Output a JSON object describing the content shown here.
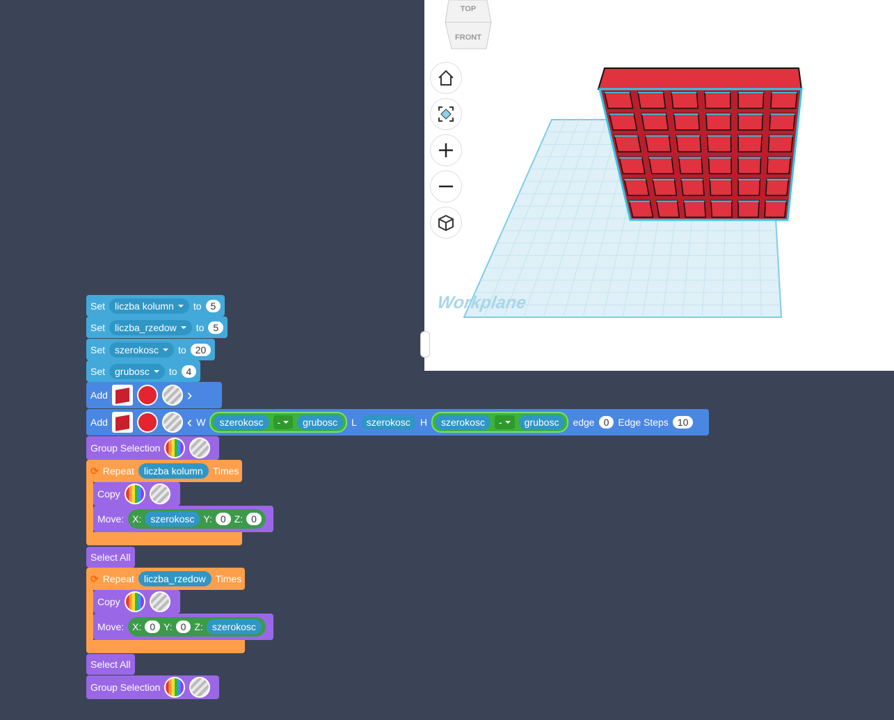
{
  "view_cube": {
    "top": "TOP",
    "front": "FRONT"
  },
  "workplane_label": "Workplane",
  "blocks": [
    {
      "label": "Set",
      "variable": "liczba kolumn",
      "to": "to",
      "value": 5
    },
    {
      "label": "Set",
      "variable": "liczba_rzedow",
      "to": "to",
      "value": 5
    },
    {
      "label": "Set",
      "variable": "szerokosc",
      "to": "to",
      "value": 20
    },
    {
      "label": "Set",
      "variable": "grubosc",
      "to": "to",
      "value": 4
    },
    {
      "label": "Add"
    },
    {
      "label": "Add",
      "w": "W",
      "w_left": "szerokosc",
      "w_op": "-",
      "w_right": "grubosc",
      "l": "L",
      "l_value": "szerokosc",
      "h": "H",
      "h_left": "szerokosc",
      "h_op": "-",
      "h_right": "grubosc",
      "edge": "edge",
      "edge_value": 0,
      "steps": "Edge Steps",
      "steps_value": 10
    },
    {
      "label": "Group Selection"
    },
    {
      "label": "Repeat",
      "variable": "liczba kolumn",
      "times": "Times",
      "body": [
        {
          "label": "Copy"
        },
        {
          "label": "Move:",
          "x": "X:",
          "x_value": "szerokosc",
          "y": "Y:",
          "y_value": 0,
          "z": "Z:",
          "z_value": 0
        }
      ]
    },
    {
      "label": "Select All"
    },
    {
      "label": "Repeat",
      "variable": "liczba_rzedow",
      "times": "Times",
      "body": [
        {
          "label": "Copy"
        },
        {
          "label": "Move:",
          "x": "X:",
          "x_value": 0,
          "y": "Y:",
          "y_value": 0,
          "z": "Z:",
          "z_value": "szerokosc"
        }
      ]
    },
    {
      "label": "Select All"
    },
    {
      "label": "Group Selection"
    }
  ]
}
